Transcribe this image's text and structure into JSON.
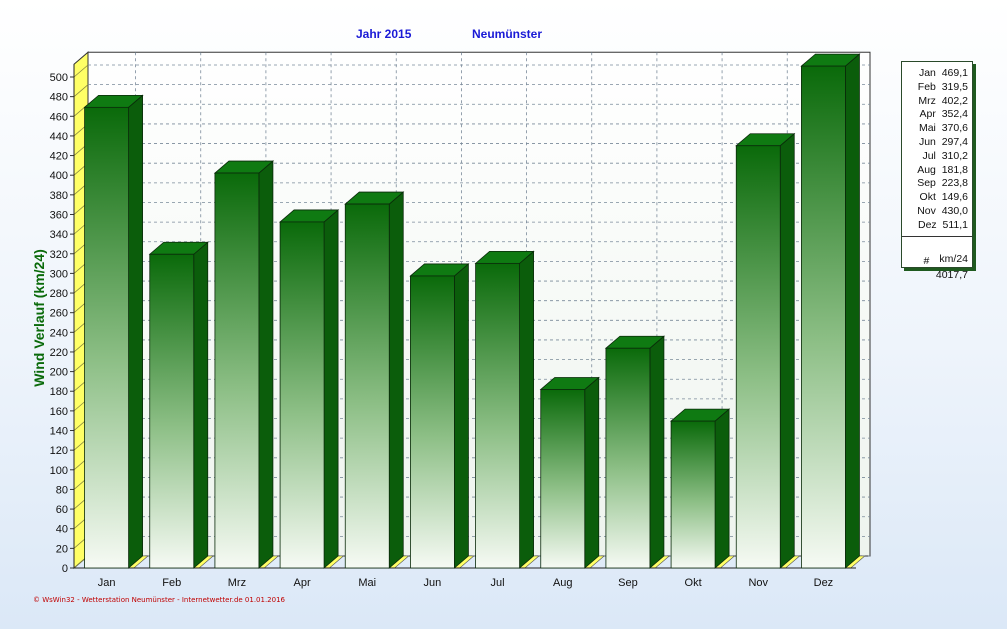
{
  "header": {
    "year_label": "Jahr  2015",
    "location": "Neumünster"
  },
  "legend": {
    "rows": [
      {
        "month": "Jan",
        "value": "469,1"
      },
      {
        "month": "Feb",
        "value": "319,5"
      },
      {
        "month": "Mrz",
        "value": "402,2"
      },
      {
        "month": "Apr",
        "value": "352,4"
      },
      {
        "month": "Mai",
        "value": "370,6"
      },
      {
        "month": "Jun",
        "value": "297,4"
      },
      {
        "month": "Jul",
        "value": "310,2"
      },
      {
        "month": "Aug",
        "value": "181,8"
      },
      {
        "month": "Sep",
        "value": "223,8"
      },
      {
        "month": "Okt",
        "value": "149,6"
      },
      {
        "month": "Nov",
        "value": "430,0"
      },
      {
        "month": "Dez",
        "value": "511,1"
      }
    ],
    "total_symbol": "#",
    "total_value": "4017,7",
    "total_unit": "km/24"
  },
  "footer": {
    "text": "© WsWin32  -  Wetterstation Neumünster  -  Internetwetter.de   01.01.2016"
  },
  "colors": {
    "bar_top": "#0a6a0a",
    "bar_bottom": "#f6faf4",
    "bar_side": "#0b5d0b",
    "floor": "#ffff66",
    "title": "#1a1ad6",
    "ylabel": "#0a6a0a"
  },
  "chart_data": {
    "type": "bar",
    "title": "",
    "xlabel": "",
    "ylabel": "Wind Verlauf  (km/24)",
    "categories": [
      "Jan",
      "Feb",
      "Mrz",
      "Apr",
      "Mai",
      "Jun",
      "Jul",
      "Aug",
      "Sep",
      "Okt",
      "Nov",
      "Dez"
    ],
    "values": [
      469.1,
      319.5,
      402.2,
      352.4,
      370.6,
      297.4,
      310.2,
      181.8,
      223.8,
      149.6,
      430.0,
      511.1
    ],
    "ylim": [
      0,
      510
    ],
    "yticks": [
      0,
      20,
      40,
      60,
      80,
      100,
      120,
      140,
      160,
      180,
      200,
      220,
      240,
      260,
      280,
      300,
      320,
      340,
      360,
      380,
      400,
      420,
      440,
      460,
      480,
      500
    ],
    "grid": true,
    "legend_position": "right"
  }
}
